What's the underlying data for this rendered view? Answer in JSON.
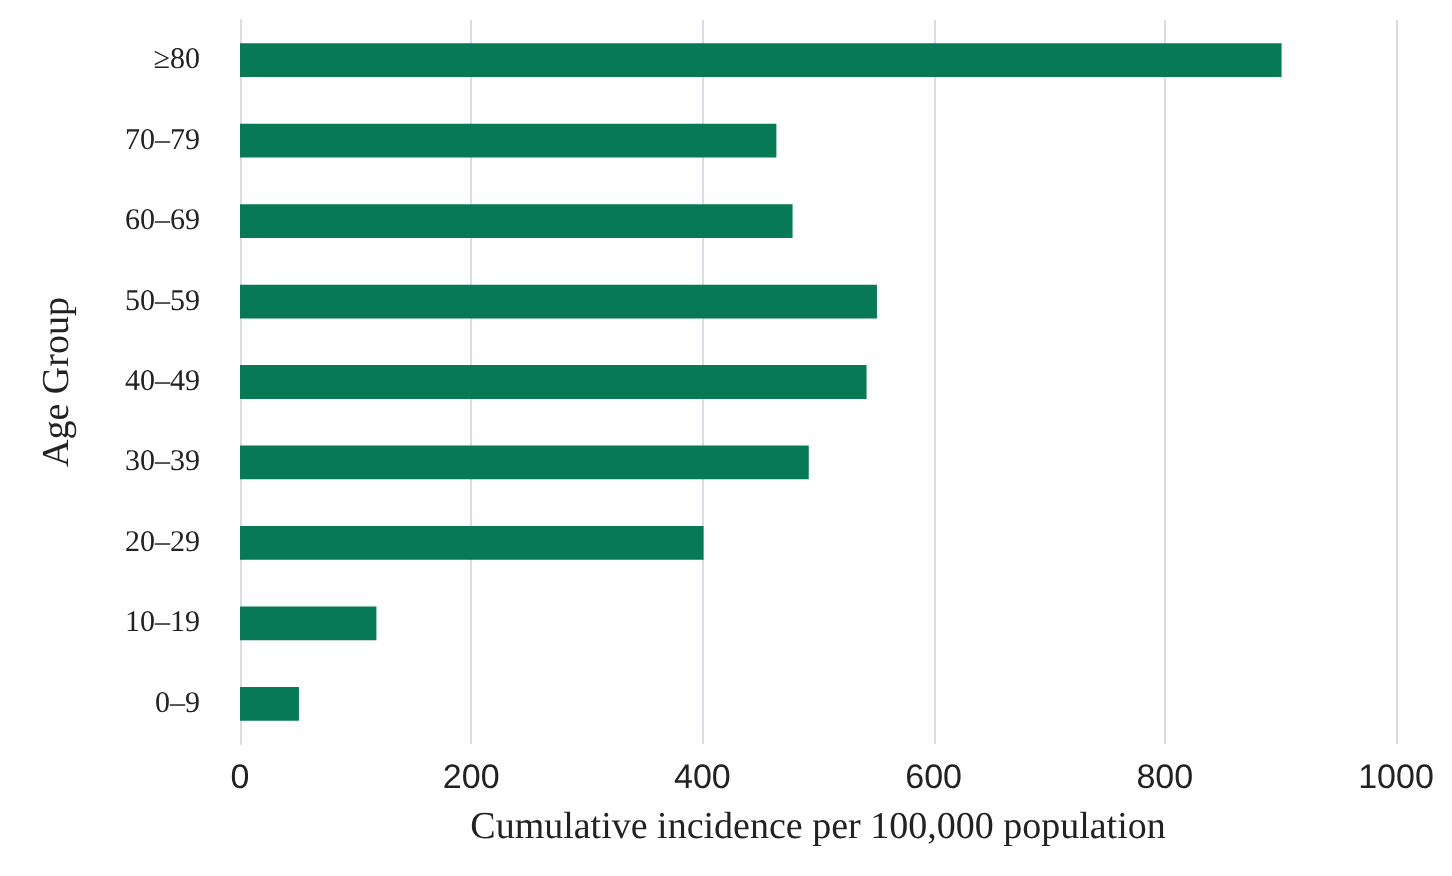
{
  "chart_data": {
    "type": "bar",
    "orientation": "horizontal",
    "xlabel": "Cumulative incidence per 100,000 population",
    "ylabel": "Age Group",
    "categories": [
      "≥80",
      "70–79",
      "60–69",
      "50–59",
      "40–49",
      "30–39",
      "20–29",
      "10–19",
      "0–9"
    ],
    "values": [
      901,
      464,
      478,
      551,
      542,
      492,
      401,
      118,
      51
    ],
    "color": "#077a55",
    "xlim": [
      0,
      1000
    ],
    "xticks": [
      0,
      200,
      400,
      600,
      800,
      1000
    ],
    "grid": "x"
  }
}
